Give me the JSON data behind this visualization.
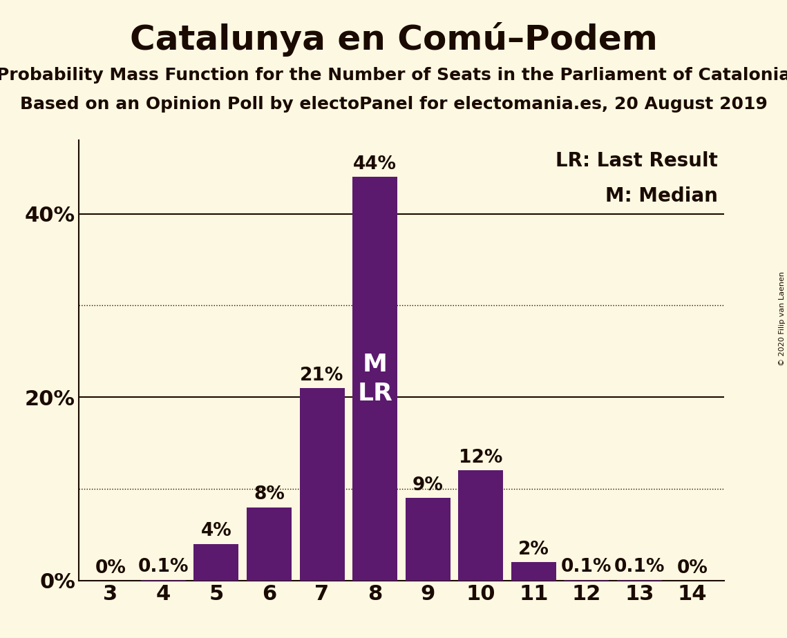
{
  "title": "Catalunya en Comú–Podem",
  "subtitle1": "Probability Mass Function for the Number of Seats in the Parliament of Catalonia",
  "subtitle2": "Based on an Opinion Poll by electoPanel for electomania.es, 20 August 2019",
  "copyright": "© 2020 Filip van Laenen",
  "categories": [
    3,
    4,
    5,
    6,
    7,
    8,
    9,
    10,
    11,
    12,
    13,
    14
  ],
  "values": [
    0.0,
    0.1,
    4.0,
    8.0,
    21.0,
    44.0,
    9.0,
    12.0,
    2.0,
    0.1,
    0.1,
    0.0
  ],
  "labels": [
    "0%",
    "0.1%",
    "4%",
    "8%",
    "21%",
    "44%",
    "9%",
    "12%",
    "2%",
    "0.1%",
    "0.1%",
    "0%"
  ],
  "bar_color": "#5b1a6e",
  "background_color": "#fdf8e1",
  "text_color": "#1a0a00",
  "ytick_labels": [
    "0%",
    "20%",
    "40%"
  ],
  "ytick_values": [
    0,
    20,
    40
  ],
  "ylim": [
    0,
    48
  ],
  "dotted_lines": [
    10,
    30
  ],
  "solid_lines": [
    20,
    40
  ],
  "median_seat": 8,
  "last_result_seat": 8,
  "legend_lr": "LR: Last Result",
  "legend_m": "M: Median",
  "bar_label_fontsize": 19,
  "title_fontsize": 36,
  "subtitle_fontsize": 18,
  "axis_fontsize": 22,
  "legend_fontsize": 20,
  "ml_fontsize": 26
}
